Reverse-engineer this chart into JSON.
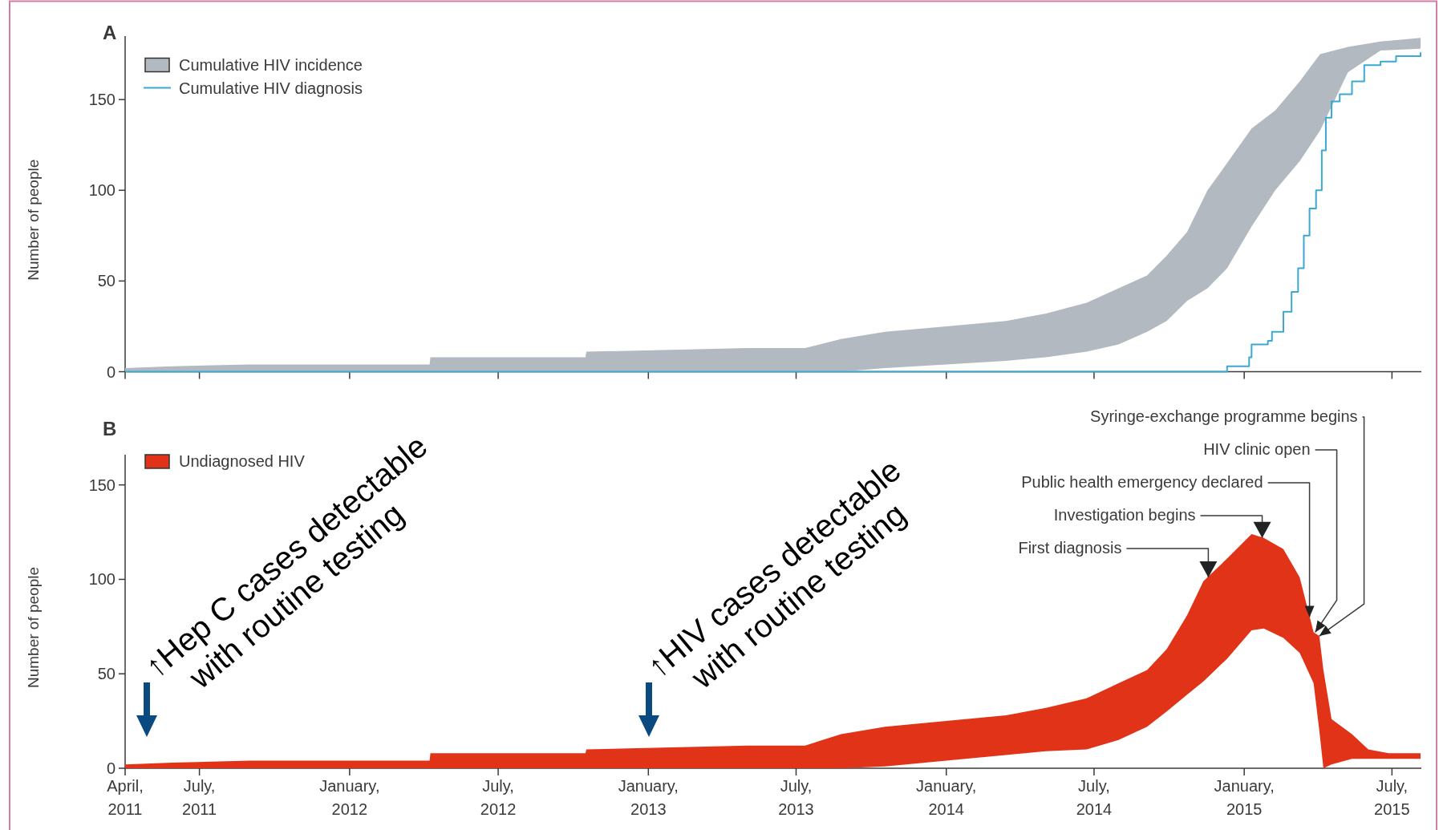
{
  "chart_data": [
    {
      "type": "area",
      "title": "A",
      "ylabel": "Number of people",
      "xlim": [
        "2011-04-01",
        "2015-08-06"
      ],
      "ylim": [
        0,
        185
      ],
      "yticks": [
        0,
        50,
        100,
        150
      ],
      "xticks": [
        {
          "value": "2011-04-01",
          "label": null
        },
        {
          "value": "2011-07-01",
          "label": null
        },
        {
          "value": "2012-01-01",
          "label": null
        },
        {
          "value": "2012-07-01",
          "label": null
        },
        {
          "value": "2013-01-01",
          "label": null
        },
        {
          "value": "2013-07-01",
          "label": null
        },
        {
          "value": "2014-01-01",
          "label": null
        },
        {
          "value": "2014-07-01",
          "label": null
        },
        {
          "value": "2015-01-01",
          "label": null
        },
        {
          "value": "2015-07-01",
          "label": null
        }
      ],
      "tick_labels": "y",
      "legend": "top left",
      "series": [
        {
          "name": "Cumulative HIV incidence",
          "color": "#b2b9c0",
          "x": [
            "2011-04-01",
            "2011-05-29",
            "2011-09-01",
            "2012-04-08",
            "2012-04-09",
            "2012-10-16",
            "2012-10-17",
            "2013-05-03",
            "2013-07-12",
            "2013-08-25",
            "2013-10-18",
            "2014-01-01",
            "2014-03-15",
            "2014-05-03",
            "2014-06-22",
            "2014-07-31",
            "2014-09-04",
            "2014-09-28",
            "2014-10-23",
            "2014-11-17",
            "2014-12-11",
            "2015-01-10",
            "2015-02-08",
            "2015-03-10",
            "2015-04-04",
            "2015-05-08",
            "2015-06-17",
            "2015-08-05"
          ],
          "values": [
            null,
            null,
            null,
            null,
            null,
            null,
            null,
            null,
            null,
            null,
            null,
            null,
            null,
            null,
            null,
            null,
            null,
            null,
            null,
            null,
            null,
            null,
            null,
            null,
            null,
            null,
            null,
            null
          ],
          "upper": [
            2,
            3,
            4,
            4,
            8,
            8,
            11,
            13,
            13,
            18,
            22,
            25,
            28,
            32,
            38,
            46,
            53,
            64,
            77,
            100,
            115,
            134,
            144,
            160,
            175,
            179,
            182,
            184
          ],
          "lower": [
            0,
            0,
            0,
            0,
            0,
            0,
            0,
            0,
            0,
            0,
            2,
            4,
            6,
            8,
            11,
            15,
            22,
            28,
            39,
            46,
            57,
            80,
            100,
            116,
            133,
            165,
            177,
            178
          ]
        },
        {
          "name": "Cumulative HIV diagnosis",
          "type": "step",
          "color": "#3ba9d0",
          "x": [
            "2011-04-01",
            "2014-11-14",
            "2014-12-11",
            "2015-01-07",
            "2015-01-10",
            "2015-01-30",
            "2015-02-04",
            "2015-02-18",
            "2015-02-28",
            "2015-03-08",
            "2015-03-15",
            "2015-03-22",
            "2015-03-30",
            "2015-04-06",
            "2015-04-11",
            "2015-04-18",
            "2015-04-28",
            "2015-05-13",
            "2015-05-28",
            "2015-06-17",
            "2015-07-06",
            "2015-08-05"
          ],
          "values": [
            0,
            0,
            3,
            8,
            15,
            17,
            22,
            33,
            44,
            57,
            75,
            90,
            100,
            122,
            140,
            149,
            153,
            160,
            169,
            171,
            174,
            176
          ]
        }
      ]
    },
    {
      "type": "area",
      "title": "B",
      "ylabel": "Number of people",
      "xlim": [
        "2011-04-01",
        "2015-08-06"
      ],
      "ylim": [
        0,
        166
      ],
      "yticks": [
        0,
        50,
        100,
        150
      ],
      "xticks": [
        {
          "value": "2011-04-01",
          "label": "April,\n2011"
        },
        {
          "value": "2011-07-01",
          "label": "July,\n2011"
        },
        {
          "value": "2012-01-01",
          "label": "January,\n2012"
        },
        {
          "value": "2012-07-01",
          "label": "July,\n2012"
        },
        {
          "value": "2013-01-01",
          "label": "January,\n2013"
        },
        {
          "value": "2013-07-01",
          "label": "July,\n2013"
        },
        {
          "value": "2014-01-01",
          "label": "January,\n2014"
        },
        {
          "value": "2014-07-01",
          "label": "July,\n2014"
        },
        {
          "value": "2015-01-01",
          "label": "January,\n2015"
        },
        {
          "value": "2015-07-01",
          "label": "July,\n2015"
        }
      ],
      "legend": "top left",
      "series": [
        {
          "name": "Undiagnosed HIV",
          "color": "#e03318",
          "x": [
            "2011-04-01",
            "2011-05-29",
            "2011-09-01",
            "2012-04-08",
            "2012-04-09",
            "2012-10-16",
            "2012-10-17",
            "2013-05-03",
            "2013-07-12",
            "2013-08-25",
            "2013-10-18",
            "2014-01-01",
            "2014-03-15",
            "2014-05-03",
            "2014-06-22",
            "2014-07-31",
            "2014-09-04",
            "2014-09-28",
            "2014-10-23",
            "2014-11-12",
            "2014-12-11",
            "2015-01-10",
            "2015-01-25",
            "2015-02-18",
            "2015-03-10",
            "2015-03-27",
            "2015-04-03",
            "2015-04-08",
            "2015-04-18",
            "2015-05-13",
            "2015-06-02",
            "2015-06-27",
            "2015-08-05"
          ],
          "values": [
            null,
            null,
            null,
            null,
            null,
            null,
            null,
            null,
            null,
            null,
            null,
            null,
            null,
            null,
            null,
            null,
            null,
            null,
            null,
            null,
            null,
            null,
            null,
            null,
            null,
            null,
            null,
            null,
            null,
            null,
            null,
            null,
            null
          ],
          "upper": [
            2,
            3,
            4,
            4,
            8,
            8,
            10,
            12,
            12,
            18,
            22,
            25,
            28,
            32,
            37,
            45,
            52,
            63,
            81,
            99,
            111,
            124,
            122,
            116,
            101,
            72,
            70,
            52,
            26,
            18,
            10,
            8,
            8
          ],
          "lower": [
            0,
            0,
            0,
            0,
            0,
            0,
            0,
            0,
            0,
            0,
            1,
            4,
            7,
            9,
            10,
            15,
            22,
            30,
            39,
            46,
            58,
            73,
            74,
            69,
            61,
            45,
            20,
            0,
            2,
            5,
            5,
            5,
            5
          ]
        }
      ],
      "annotations": [
        "↑Hep C cases detectable\nwith routine testing",
        "↑HIV cases detectable\nwith routine testing",
        {
          "text": "First diagnosis",
          "x": "2014-11-18",
          "y": 101
        },
        {
          "text": "Investigation begins",
          "x": "2015-01-23",
          "y": 122
        },
        {
          "text": "Public health emergency declared",
          "x": "2015-03-22",
          "y": 80
        },
        {
          "text": "HIV clinic open",
          "x": "2015-03-29",
          "y": 72
        },
        {
          "text": "Syringe-exchange programme begins",
          "x": "2015-04-03",
          "y": 70
        }
      ]
    }
  ]
}
